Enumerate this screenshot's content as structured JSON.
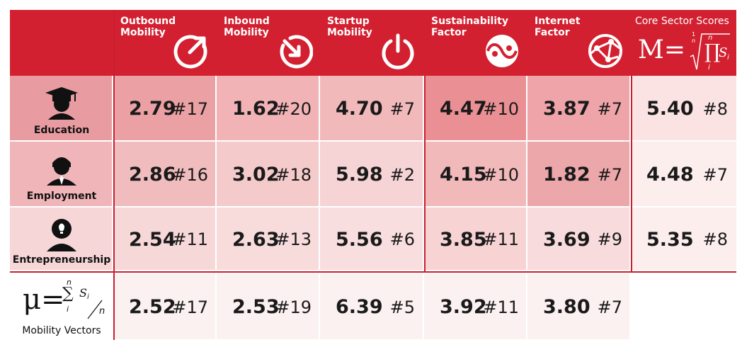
{
  "columns": [
    {
      "label": "Outbound\nMobility",
      "icon": "outbound-arrow-icon"
    },
    {
      "label": "Inbound\nMobility",
      "icon": "inbound-arrow-icon"
    },
    {
      "label": "Startup\nMobility",
      "icon": "power-icon"
    },
    {
      "label": "Sustainability\nFactor",
      "icon": "yin-yang-icon"
    },
    {
      "label": "Internet\nFactor",
      "icon": "network-globe-icon"
    }
  ],
  "core": {
    "label": "Core Sector Scores",
    "formula_main": "M=",
    "formula_exp_num": "1",
    "formula_exp_den": "n",
    "formula_upper": "n",
    "formula_prod": "∏",
    "formula_lower": "i",
    "formula_var": "S",
    "formula_sub": "i"
  },
  "rows": [
    {
      "label": "Education",
      "icon": "graduate-person-icon",
      "cells": [
        {
          "score": "2.79",
          "rank": "#17"
        },
        {
          "score": "1.62",
          "rank": "#20"
        },
        {
          "score": "4.70",
          "rank": "#7"
        },
        {
          "score": "4.47",
          "rank": "#10"
        },
        {
          "score": "3.87",
          "rank": "#7"
        }
      ],
      "core": {
        "score": "5.40",
        "rank": "#8"
      }
    },
    {
      "label": "Employment",
      "icon": "businessperson-icon",
      "cells": [
        {
          "score": "2.86",
          "rank": "#16"
        },
        {
          "score": "3.02",
          "rank": "#18"
        },
        {
          "score": "5.98",
          "rank": "#2"
        },
        {
          "score": "4.15",
          "rank": "#10"
        },
        {
          "score": "1.82",
          "rank": "#7"
        }
      ],
      "core": {
        "score": "4.48",
        "rank": "#7"
      }
    },
    {
      "label": "Entrepreneurship",
      "icon": "idea-person-icon",
      "cells": [
        {
          "score": "2.54",
          "rank": "#11"
        },
        {
          "score": "2.63",
          "rank": "#13"
        },
        {
          "score": "5.56",
          "rank": "#6"
        },
        {
          "score": "3.85",
          "rank": "#11"
        },
        {
          "score": "3.69",
          "rank": "#9"
        }
      ],
      "core": {
        "score": "5.35",
        "rank": "#8"
      }
    },
    {
      "label": "Mobility Vectors",
      "icon": "mu-formula",
      "formula": {
        "mu": "μ=",
        "upper": "n",
        "sum": "∑",
        "lower": "i",
        "var": "S",
        "sub": "i",
        "den": "n"
      },
      "cells": [
        {
          "score": "2.52",
          "rank": "#17"
        },
        {
          "score": "2.53",
          "rank": "#19"
        },
        {
          "score": "6.39",
          "rank": "#5"
        },
        {
          "score": "3.92",
          "rank": "#11"
        },
        {
          "score": "3.80",
          "rank": "#7"
        }
      ]
    }
  ],
  "colors": {
    "header": "#d32030",
    "row_education": [
      "#eba0a4",
      "#f1b3b6",
      "#f2b9bb",
      "#ea9094",
      "#eea4a8",
      "#fbe3e4",
      "#e89ca1"
    ],
    "row_employment": [
      "#f1bcbe",
      "#f4caca",
      "#f6d3d4",
      "#f2b9bb",
      "#eba7aa",
      "#fdeeee",
      "#efb5b8"
    ],
    "row_entrepreneurship": [
      "#f7d8d9",
      "#f8dcdc",
      "#f8dede",
      "#f7d3d4",
      "#f8dcdd",
      "#fdeeee",
      "#f6d6d7"
    ],
    "row_vectors": [
      "#fcf1f1",
      "#fcf1f1",
      "#fcf1f1",
      "#fcf1f1",
      "#fcf1f1",
      "#ffffff",
      "#ffffff"
    ]
  }
}
